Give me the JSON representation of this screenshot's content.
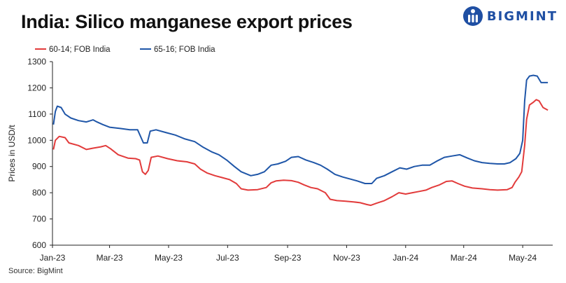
{
  "title": "India: Silico manganese export prices",
  "logo": {
    "text": "BIGMINT",
    "icon": "bigmint-logo-icon"
  },
  "source": "Source: BigMint",
  "colors": {
    "red": "#e23b3b",
    "blue": "#1f56a8",
    "axis": "#222222",
    "brand": "#1f4fa3"
  },
  "chart_data": {
    "type": "line",
    "title": "India: Silico manganese export prices",
    "ylabel": "Prices in USD/t",
    "xlabel": "",
    "ylim": [
      600,
      1300
    ],
    "yticks": [
      600,
      700,
      800,
      900,
      1000,
      1100,
      1200,
      1300
    ],
    "xlim": [
      "2023-01-01",
      "2024-06-01"
    ],
    "xticks": [
      {
        "date": "2023-01-01",
        "label": "Jan-23"
      },
      {
        "date": "2023-03-01",
        "label": "Mar-23"
      },
      {
        "date": "2023-05-01",
        "label": "May-23"
      },
      {
        "date": "2023-07-01",
        "label": "Jul-23"
      },
      {
        "date": "2023-09-01",
        "label": "Sep-23"
      },
      {
        "date": "2023-11-01",
        "label": "Nov-23"
      },
      {
        "date": "2024-01-01",
        "label": "Jan-24"
      },
      {
        "date": "2024-03-01",
        "label": "Mar-24"
      },
      {
        "date": "2024-05-01",
        "label": "May-24"
      }
    ],
    "grid": false,
    "legend_position": "top-left",
    "series": [
      {
        "name": "60-14; FOB India",
        "color": "#e23b3b",
        "points": [
          [
            "2023-01-02",
            965
          ],
          [
            "2023-01-04",
            1000
          ],
          [
            "2023-01-08",
            1015
          ],
          [
            "2023-01-14",
            1010
          ],
          [
            "2023-01-18",
            990
          ],
          [
            "2023-01-28",
            980
          ],
          [
            "2023-02-05",
            965
          ],
          [
            "2023-02-12",
            970
          ],
          [
            "2023-02-20",
            975
          ],
          [
            "2023-02-25",
            980
          ],
          [
            "2023-03-02",
            968
          ],
          [
            "2023-03-10",
            945
          ],
          [
            "2023-03-20",
            932
          ],
          [
            "2023-03-28",
            930
          ],
          [
            "2023-04-01",
            925
          ],
          [
            "2023-04-04",
            880
          ],
          [
            "2023-04-07",
            870
          ],
          [
            "2023-04-10",
            885
          ],
          [
            "2023-04-13",
            935
          ],
          [
            "2023-04-20",
            940
          ],
          [
            "2023-04-30",
            930
          ],
          [
            "2023-05-10",
            922
          ],
          [
            "2023-05-20",
            918
          ],
          [
            "2023-05-28",
            910
          ],
          [
            "2023-06-03",
            890
          ],
          [
            "2023-06-10",
            875
          ],
          [
            "2023-06-18",
            865
          ],
          [
            "2023-06-25",
            858
          ],
          [
            "2023-07-03",
            850
          ],
          [
            "2023-07-10",
            835
          ],
          [
            "2023-07-15",
            815
          ],
          [
            "2023-07-22",
            810
          ],
          [
            "2023-08-01",
            812
          ],
          [
            "2023-08-10",
            820
          ],
          [
            "2023-08-15",
            838
          ],
          [
            "2023-08-20",
            845
          ],
          [
            "2023-08-28",
            848
          ],
          [
            "2023-09-05",
            846
          ],
          [
            "2023-09-12",
            840
          ],
          [
            "2023-09-18",
            830
          ],
          [
            "2023-09-25",
            820
          ],
          [
            "2023-10-02",
            815
          ],
          [
            "2023-10-10",
            800
          ],
          [
            "2023-10-15",
            775
          ],
          [
            "2023-10-22",
            770
          ],
          [
            "2023-10-30",
            768
          ],
          [
            "2023-11-08",
            765
          ],
          [
            "2023-11-15",
            762
          ],
          [
            "2023-11-22",
            755
          ],
          [
            "2023-11-26",
            752
          ],
          [
            "2023-12-02",
            760
          ],
          [
            "2023-12-10",
            770
          ],
          [
            "2023-12-18",
            785
          ],
          [
            "2023-12-25",
            800
          ],
          [
            "2024-01-01",
            795
          ],
          [
            "2024-01-08",
            800
          ],
          [
            "2024-01-15",
            805
          ],
          [
            "2024-01-22",
            810
          ],
          [
            "2024-01-28",
            820
          ],
          [
            "2024-02-05",
            830
          ],
          [
            "2024-02-12",
            843
          ],
          [
            "2024-02-18",
            845
          ],
          [
            "2024-02-24",
            835
          ],
          [
            "2024-03-02",
            825
          ],
          [
            "2024-03-10",
            818
          ],
          [
            "2024-03-20",
            815
          ],
          [
            "2024-03-28",
            812
          ],
          [
            "2024-04-05",
            810
          ],
          [
            "2024-04-15",
            812
          ],
          [
            "2024-04-20",
            820
          ],
          [
            "2024-04-23",
            840
          ],
          [
            "2024-04-27",
            860
          ],
          [
            "2024-04-30",
            880
          ],
          [
            "2024-05-03",
            980
          ],
          [
            "2024-05-05",
            1080
          ],
          [
            "2024-05-08",
            1135
          ],
          [
            "2024-05-12",
            1145
          ],
          [
            "2024-05-15",
            1155
          ],
          [
            "2024-05-18",
            1150
          ],
          [
            "2024-05-22",
            1125
          ],
          [
            "2024-05-27",
            1115
          ]
        ]
      },
      {
        "name": "65-16; FOB India",
        "color": "#1f56a8",
        "points": [
          [
            "2023-01-02",
            1060
          ],
          [
            "2023-01-04",
            1110
          ],
          [
            "2023-01-06",
            1130
          ],
          [
            "2023-01-10",
            1125
          ],
          [
            "2023-01-14",
            1100
          ],
          [
            "2023-01-20",
            1085
          ],
          [
            "2023-01-28",
            1075
          ],
          [
            "2023-02-05",
            1070
          ],
          [
            "2023-02-12",
            1078
          ],
          [
            "2023-02-16",
            1070
          ],
          [
            "2023-02-22",
            1060
          ],
          [
            "2023-03-01",
            1050
          ],
          [
            "2023-03-12",
            1045
          ],
          [
            "2023-03-22",
            1040
          ],
          [
            "2023-03-30",
            1040
          ],
          [
            "2023-04-05",
            990
          ],
          [
            "2023-04-09",
            990
          ],
          [
            "2023-04-12",
            1035
          ],
          [
            "2023-04-18",
            1040
          ],
          [
            "2023-04-28",
            1030
          ],
          [
            "2023-05-08",
            1020
          ],
          [
            "2023-05-18",
            1005
          ],
          [
            "2023-05-28",
            995
          ],
          [
            "2023-06-05",
            975
          ],
          [
            "2023-06-15",
            955
          ],
          [
            "2023-06-22",
            945
          ],
          [
            "2023-06-30",
            925
          ],
          [
            "2023-07-08",
            900
          ],
          [
            "2023-07-15",
            880
          ],
          [
            "2023-07-25",
            865
          ],
          [
            "2023-08-01",
            870
          ],
          [
            "2023-08-08",
            880
          ],
          [
            "2023-08-15",
            905
          ],
          [
            "2023-08-22",
            910
          ],
          [
            "2023-08-30",
            920
          ],
          [
            "2023-09-05",
            935
          ],
          [
            "2023-09-12",
            938
          ],
          [
            "2023-09-20",
            925
          ],
          [
            "2023-09-28",
            915
          ],
          [
            "2023-10-05",
            905
          ],
          [
            "2023-10-12",
            890
          ],
          [
            "2023-10-20",
            870
          ],
          [
            "2023-10-28",
            860
          ],
          [
            "2023-11-05",
            852
          ],
          [
            "2023-11-12",
            845
          ],
          [
            "2023-11-20",
            835
          ],
          [
            "2023-11-27",
            835
          ],
          [
            "2023-12-02",
            855
          ],
          [
            "2023-12-10",
            865
          ],
          [
            "2023-12-18",
            880
          ],
          [
            "2023-12-26",
            895
          ],
          [
            "2024-01-02",
            890
          ],
          [
            "2024-01-10",
            900
          ],
          [
            "2024-01-18",
            905
          ],
          [
            "2024-01-26",
            905
          ],
          [
            "2024-02-02",
            920
          ],
          [
            "2024-02-10",
            935
          ],
          [
            "2024-02-18",
            940
          ],
          [
            "2024-02-26",
            945
          ],
          [
            "2024-03-05",
            932
          ],
          [
            "2024-03-12",
            922
          ],
          [
            "2024-03-20",
            915
          ],
          [
            "2024-03-28",
            912
          ],
          [
            "2024-04-05",
            910
          ],
          [
            "2024-04-12",
            910
          ],
          [
            "2024-04-18",
            915
          ],
          [
            "2024-04-24",
            930
          ],
          [
            "2024-04-28",
            950
          ],
          [
            "2024-05-01",
            1000
          ],
          [
            "2024-05-03",
            1150
          ],
          [
            "2024-05-05",
            1230
          ],
          [
            "2024-05-08",
            1245
          ],
          [
            "2024-05-12",
            1248
          ],
          [
            "2024-05-16",
            1245
          ],
          [
            "2024-05-20",
            1220
          ],
          [
            "2024-05-27",
            1220
          ]
        ]
      }
    ]
  }
}
